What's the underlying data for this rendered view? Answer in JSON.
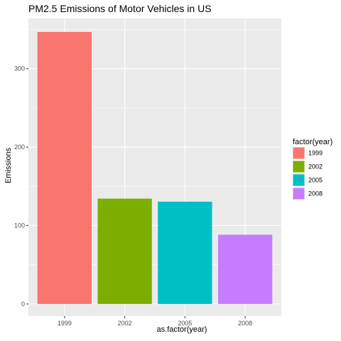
{
  "chart_data": {
    "type": "bar",
    "title": "PM2.5 Emissions of Motor Vehicles in US",
    "xlabel": "as.factor(year)",
    "ylabel": "Emissions",
    "categories": [
      "1999",
      "2002",
      "2005",
      "2008"
    ],
    "values": [
      346.8,
      134.3,
      130.4,
      88.3
    ],
    "colors": [
      "#F8766D",
      "#7CAE00",
      "#00BFC4",
      "#C77CFF"
    ],
    "ylim": [
      -15.5,
      364
    ],
    "yticks": [
      0,
      100,
      200,
      300
    ],
    "grid": true,
    "panel_background": "#EBEBEB",
    "grid_color": "#FFFFFF",
    "legend": {
      "title": "factor(year)",
      "position": "right",
      "entries": [
        "1999",
        "2002",
        "2005",
        "2008"
      ]
    }
  }
}
